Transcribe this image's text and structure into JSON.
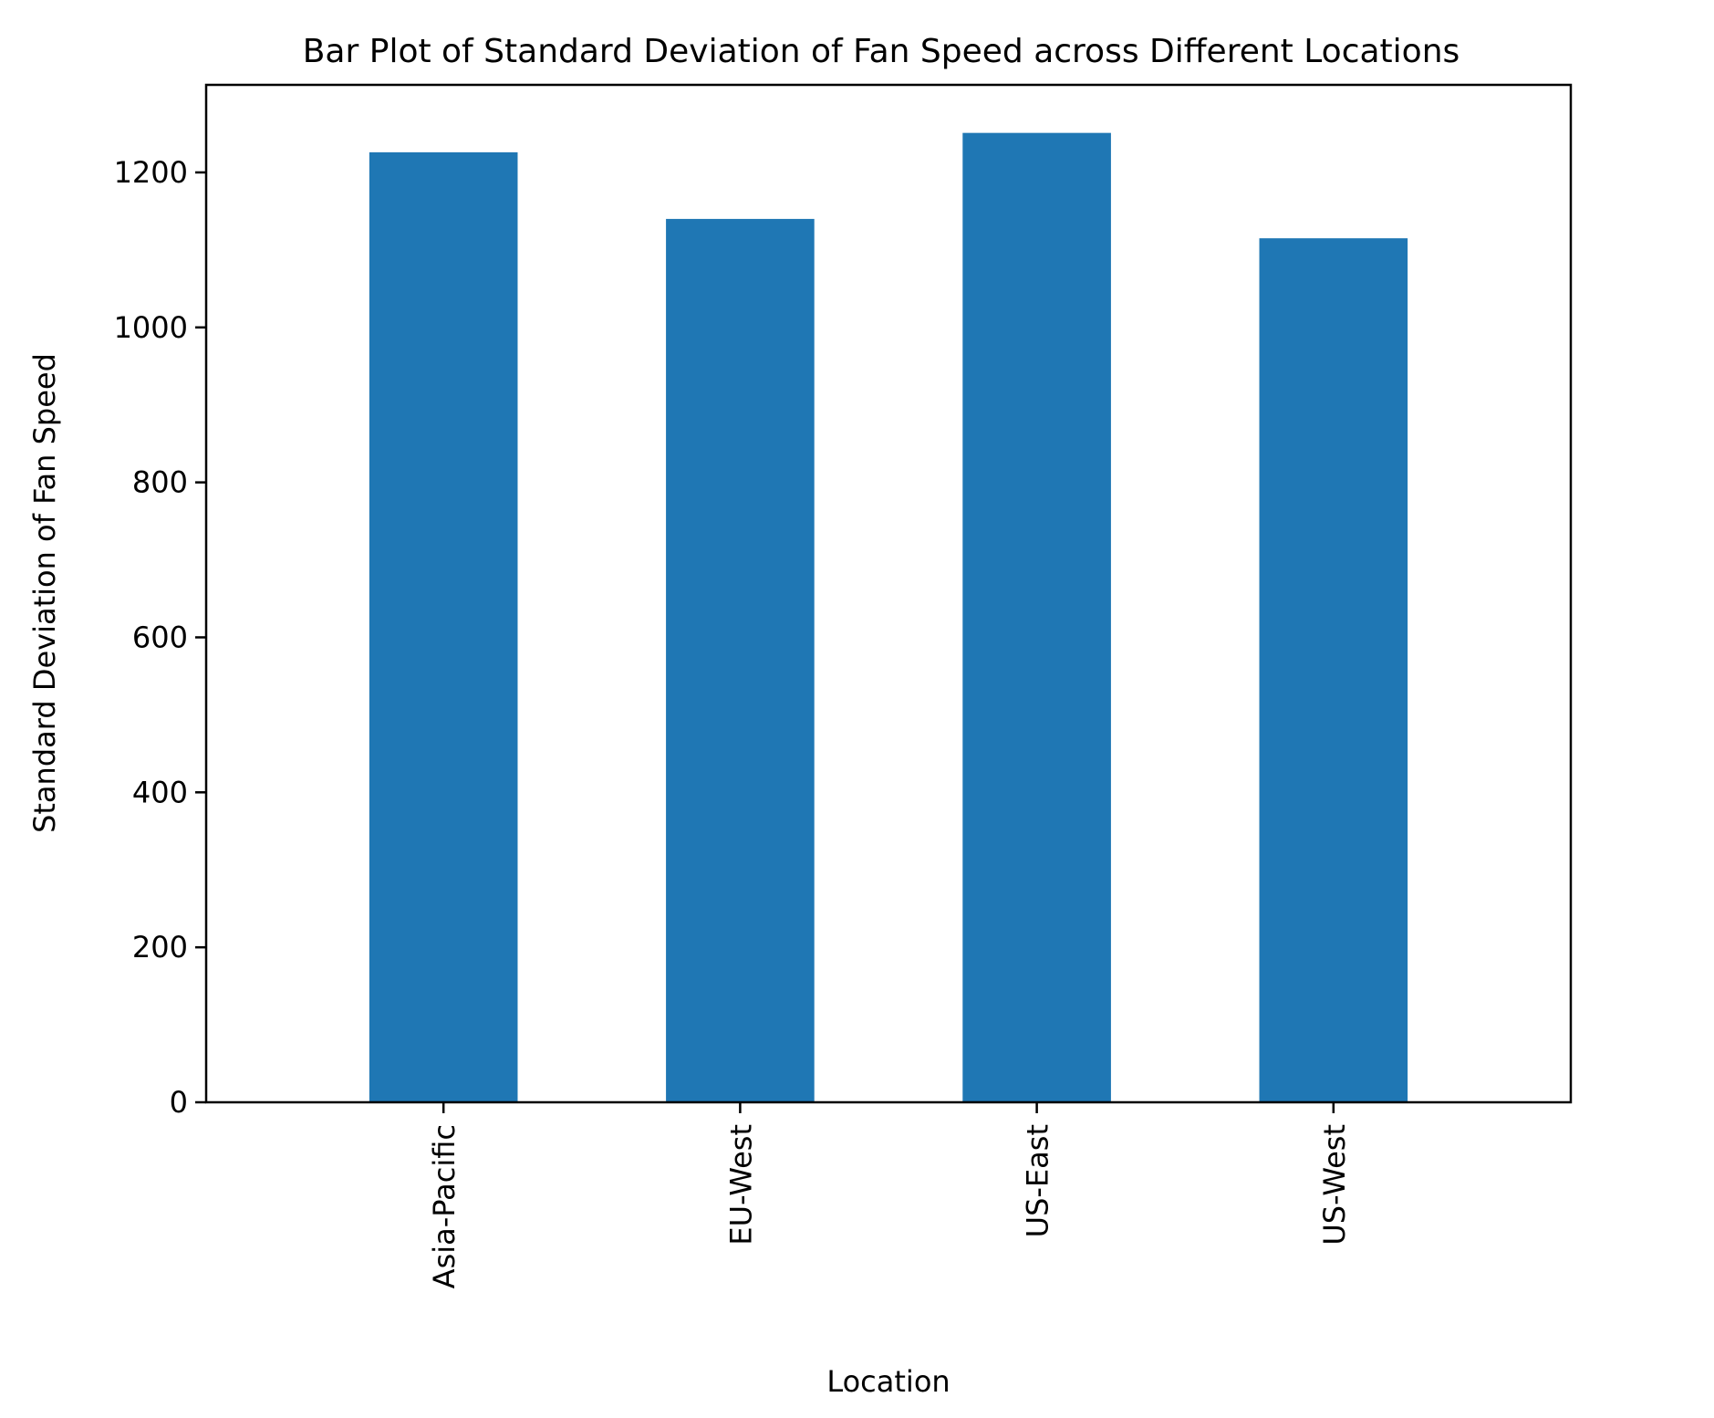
{
  "chart_data": {
    "type": "bar",
    "title": "Bar Plot of Standard Deviation of Fan Speed across Different Locations",
    "xlabel": "Location",
    "ylabel": "Standard Deviation of Fan Speed",
    "categories": [
      "Asia-Pacific",
      "EU-West",
      "US-East",
      "US-West"
    ],
    "values": [
      1226,
      1140,
      1251,
      1115
    ],
    "ylim": [
      0,
      1313
    ],
    "yticks": [
      0,
      200,
      400,
      600,
      800,
      1000,
      1200
    ],
    "grid": false,
    "legend": "none",
    "bar_color": "#1f77b4"
  }
}
